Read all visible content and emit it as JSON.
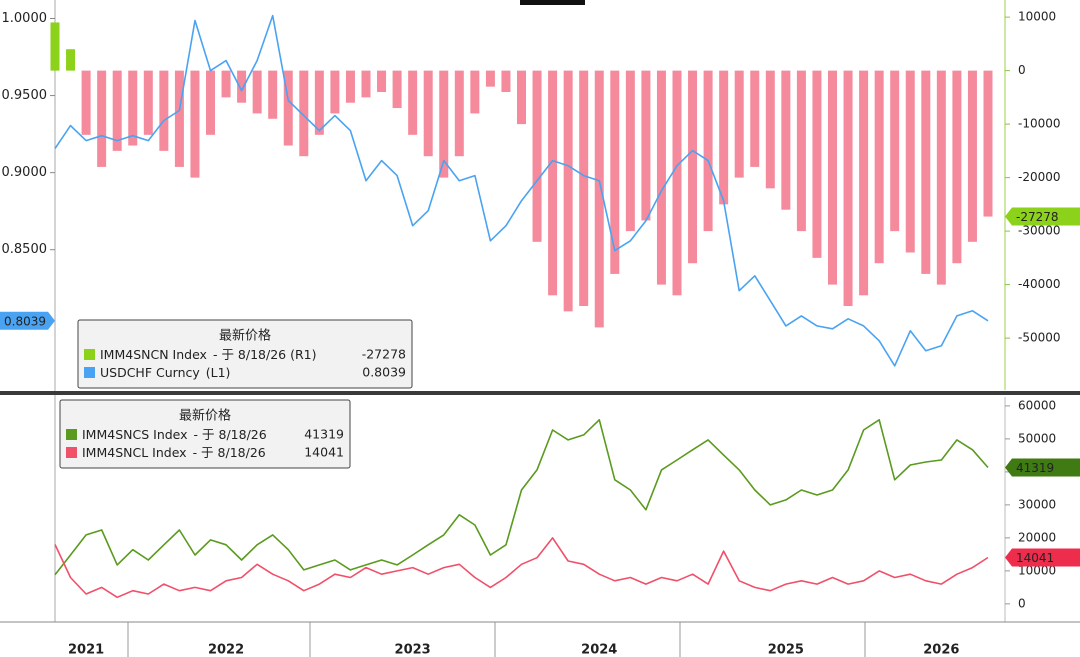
{
  "chart_data": [
    {
      "type": "combo",
      "ylim": [
        0.759,
        1.012
      ],
      "yticks": [
        {
          "value": 1.0,
          "label": "1.0000"
        },
        {
          "value": 0.95,
          "label": "0.9500"
        },
        {
          "value": 0.9,
          "label": "0.9000"
        },
        {
          "value": 0.85,
          "label": "0.8500"
        }
      ],
      "y2lim": [
        -59700,
        13200
      ],
      "y2ticks": [
        10000,
        0,
        -10000,
        -20000,
        -30000,
        -40000,
        -50000
      ],
      "legend_title": "最新价格",
      "series": [
        {
          "name": "IMM4SNCN Index",
          "legend_detail": "-  于 8/18/26  (R1)",
          "kind": "bar",
          "axis": "y2",
          "color": "#8cd11a",
          "negative_color": "#f48a9c",
          "values": [
            9000,
            4000,
            -12000,
            -18000,
            -15000,
            -14000,
            -12000,
            -15000,
            -18000,
            -20000,
            -12000,
            -5000,
            -6000,
            -8000,
            -9000,
            -14000,
            -16000,
            -12000,
            -8000,
            -6000,
            -5000,
            -4000,
            -7000,
            -12000,
            -16000,
            -20000,
            -16000,
            -8000,
            -3000,
            -4000,
            -10000,
            -32000,
            -42000,
            -45000,
            -44000,
            -48000,
            -38000,
            -30000,
            -28000,
            -40000,
            -42000,
            -36000,
            -30000,
            -25000,
            -20000,
            -18000,
            -22000,
            -26000,
            -30000,
            -35000,
            -40000,
            -44000,
            -42000,
            -36000,
            -30000,
            -34000,
            -38000,
            -40000,
            -36000,
            -32000,
            -27278
          ]
        },
        {
          "name": "USDCHF Curncy",
          "legend_detail": "(L1)",
          "kind": "line",
          "color": "#4aa3f2",
          "values": [
            0.9156,
            0.9305,
            0.9208,
            0.924,
            0.9208,
            0.924,
            0.9208,
            0.9338,
            0.9403,
            0.9987,
            0.9662,
            0.9727,
            0.9532,
            0.9727,
            1.0019,
            0.9468,
            0.937,
            0.9273,
            0.937,
            0.9273,
            0.8948,
            0.9078,
            0.8981,
            0.8656,
            0.8753,
            0.9078,
            0.8948,
            0.8981,
            0.8558,
            0.8656,
            0.8818,
            0.8948,
            0.9078,
            0.9045,
            0.8981,
            0.8948,
            0.8494,
            0.8558,
            0.8688,
            0.8883,
            0.9045,
            0.9143,
            0.9078,
            0.8818,
            0.8234,
            0.8331,
            0.8169,
            0.8006,
            0.8071,
            0.8006,
            0.7987,
            0.8052,
            0.8006,
            0.7909,
            0.7747,
            0.7974,
            0.7844,
            0.7877,
            0.8071,
            0.8104,
            0.8039
          ]
        }
      ]
    },
    {
      "type": "line",
      "ylim": [
        -5500,
        62700
      ],
      "yticks": [
        60000,
        50000,
        40000,
        30000,
        20000,
        10000,
        0
      ],
      "ytick_side": "right",
      "legend_title": "最新价格",
      "categories": [
        null,
        null,
        "2021",
        null,
        null,
        null,
        null,
        null,
        null,
        null,
        null,
        "2022",
        null,
        null,
        null,
        null,
        null,
        null,
        null,
        null,
        null,
        null,
        null,
        "2023",
        null,
        null,
        null,
        null,
        null,
        null,
        null,
        null,
        null,
        null,
        null,
        "2024",
        null,
        null,
        null,
        null,
        null,
        null,
        null,
        null,
        null,
        null,
        null,
        "2025",
        null,
        null,
        null,
        null,
        null,
        null,
        null,
        null,
        null,
        "2026",
        null,
        null,
        null
      ],
      "series": [
        {
          "name": "IMM4SNCS Index",
          "legend_detail": "-  于 8/18/26",
          "color": "#5a9a1e",
          "label_color": "#3f7a12",
          "values": [
            8800,
            14800,
            20900,
            22400,
            11800,
            16400,
            13300,
            17900,
            22400,
            14800,
            19400,
            17900,
            13300,
            17900,
            20900,
            16400,
            10300,
            11800,
            13300,
            10300,
            11800,
            13300,
            11800,
            14800,
            17900,
            20900,
            27000,
            23900,
            14800,
            17900,
            34500,
            40600,
            52700,
            49700,
            51200,
            55800,
            37600,
            34500,
            28500,
            40600,
            43600,
            46700,
            49700,
            45100,
            40600,
            34500,
            30000,
            31500,
            34500,
            33000,
            34500,
            40600,
            52700,
            55800,
            37600,
            42100,
            43000,
            43600,
            49700,
            46700,
            41319
          ]
        },
        {
          "name": "IMM4SNCL Index",
          "legend_detail": "-  于 8/18/26",
          "color": "#f0506a",
          "label_color": "#ee2c4c",
          "values": [
            18000,
            8000,
            3000,
            5000,
            2000,
            4000,
            3000,
            6000,
            4000,
            5000,
            4000,
            7000,
            8000,
            12000,
            9000,
            7000,
            4000,
            6000,
            9000,
            8000,
            11000,
            9000,
            10000,
            11000,
            9000,
            11000,
            12000,
            8000,
            5000,
            8000,
            12000,
            14000,
            20000,
            13000,
            12000,
            9000,
            7000,
            8000,
            6000,
            8000,
            7000,
            9000,
            6000,
            16000,
            7000,
            5000,
            4000,
            6000,
            7000,
            6000,
            8000,
            6000,
            7000,
            10000,
            8000,
            9000,
            7000,
            6000,
            9000,
            11000,
            14041
          ]
        }
      ]
    }
  ]
}
